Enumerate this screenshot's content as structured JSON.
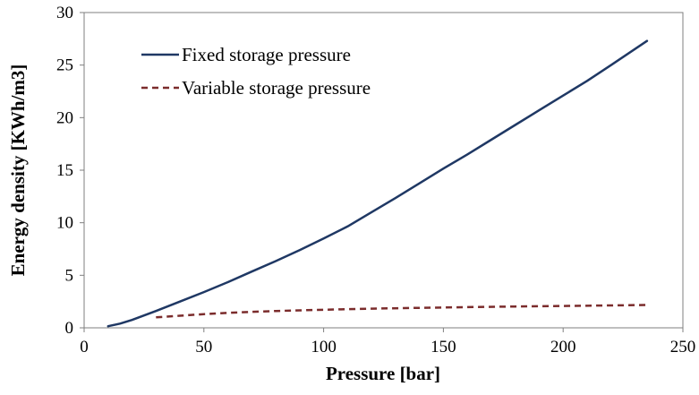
{
  "chart_data": {
    "type": "line",
    "title": "",
    "xlabel": "Pressure [bar]",
    "ylabel": "Energy density [KWh/m3]",
    "xlim": [
      0,
      250
    ],
    "ylim": [
      0,
      30
    ],
    "x_ticks": [
      0,
      50,
      100,
      150,
      200,
      250
    ],
    "y_ticks": [
      0,
      5,
      10,
      15,
      20,
      25,
      30
    ],
    "grid": false,
    "legend_position": "top-left",
    "series": [
      {
        "name": "Fixed storage pressure",
        "color": "#1f3864",
        "style": "solid",
        "x": [
          10,
          15,
          20,
          30,
          40,
          50,
          60,
          70,
          80,
          90,
          100,
          110,
          120,
          130,
          140,
          150,
          160,
          170,
          180,
          190,
          200,
          210,
          220,
          235
        ],
        "y": [
          0.15,
          0.4,
          0.75,
          1.6,
          2.5,
          3.4,
          4.35,
          5.35,
          6.35,
          7.4,
          8.5,
          9.65,
          11.0,
          12.35,
          13.75,
          15.15,
          16.5,
          17.9,
          19.3,
          20.7,
          22.1,
          23.5,
          25.0,
          27.3
        ]
      },
      {
        "name": "Variable storage pressure",
        "color": "#7b2c2c",
        "style": "dashed",
        "x": [
          30,
          40,
          50,
          60,
          70,
          80,
          90,
          100,
          120,
          140,
          160,
          180,
          200,
          220,
          235
        ],
        "y": [
          1.0,
          1.15,
          1.3,
          1.42,
          1.52,
          1.6,
          1.66,
          1.72,
          1.82,
          1.9,
          1.97,
          2.03,
          2.08,
          2.13,
          2.17
        ]
      }
    ]
  }
}
